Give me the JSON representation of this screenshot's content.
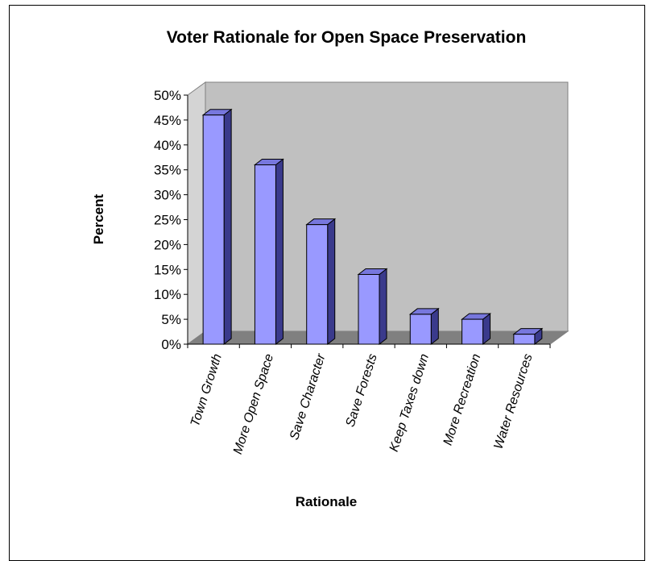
{
  "chart_data": {
    "type": "bar",
    "title": "Voter Rationale for Open Space Preservation",
    "xlabel": "Rationale",
    "ylabel": "Percent",
    "categories": [
      "Town Growth",
      "More Open Space",
      "Save Character",
      "Save Forests",
      "Keep Taxes down",
      "More Recreation",
      "Water Resources"
    ],
    "values": [
      0.46,
      0.36,
      0.24,
      0.14,
      0.06,
      0.05,
      0.02
    ],
    "ylim": [
      0,
      0.5
    ],
    "yticks": [
      "0%",
      "5%",
      "10%",
      "15%",
      "20%",
      "25%",
      "30%",
      "35%",
      "40%",
      "45%",
      "50%"
    ],
    "grid": false,
    "legend": "none",
    "colors": {
      "bar_front": "#9999ff",
      "bar_side": "#3a3a8c",
      "bar_top": "#7777dd",
      "back_wall": "#c0c0c0",
      "floor": "#808080"
    }
  }
}
